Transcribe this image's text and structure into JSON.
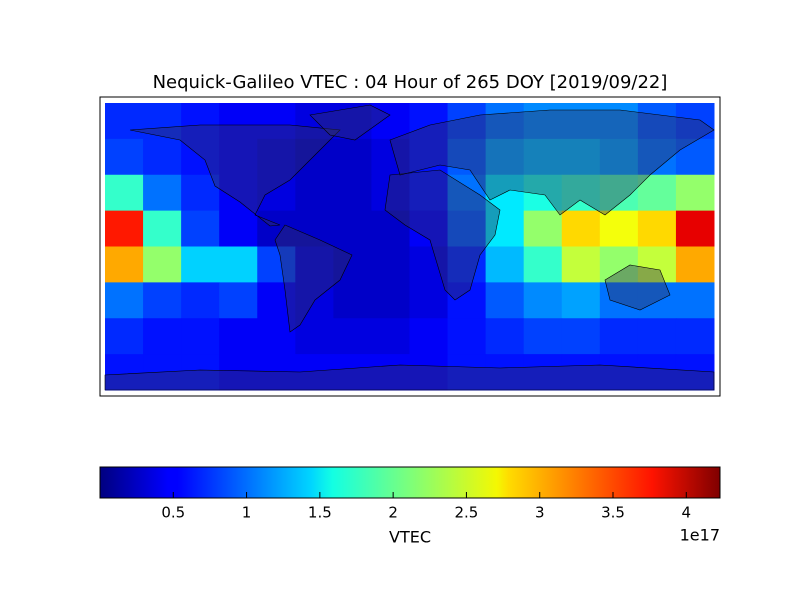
{
  "chart_data": {
    "type": "heatmap",
    "title": "Nequick-Galileo VTEC : 04 Hour of 265 DOY [2019/09/22]",
    "colorbar_label": "VTEC",
    "colorbar_offset": "1e17",
    "colormap": "jet",
    "clim": [
      0.0,
      4.23
    ],
    "cticks": [
      0.5,
      1.0,
      1.5,
      2.0,
      2.5,
      3.0,
      3.5,
      4.0
    ],
    "values": [
      [
        0.7,
        0.7,
        0.6,
        0.5,
        0.5,
        0.4,
        0.4,
        0.5,
        0.6,
        0.8,
        1.0,
        1.1,
        1.1,
        1.1,
        0.9,
        0.8
      ],
      [
        0.8,
        0.7,
        0.6,
        0.5,
        0.4,
        0.3,
        0.3,
        0.4,
        0.6,
        0.9,
        1.2,
        1.3,
        1.3,
        1.2,
        1.0,
        0.9
      ],
      [
        1.8,
        1.0,
        0.7,
        0.5,
        0.4,
        0.3,
        0.3,
        0.4,
        0.6,
        1.0,
        1.5,
        1.7,
        1.8,
        1.9,
        2.0,
        2.2
      ],
      [
        3.6,
        1.8,
        0.8,
        0.5,
        0.3,
        0.3,
        0.3,
        0.3,
        0.5,
        0.9,
        1.5,
        2.2,
        2.8,
        2.6,
        2.8,
        3.8
      ],
      [
        3.0,
        2.2,
        1.4,
        1.4,
        0.8,
        0.4,
        0.3,
        0.3,
        0.4,
        0.7,
        1.3,
        1.8,
        2.4,
        2.2,
        2.4,
        3.0
      ],
      [
        1.0,
        0.8,
        0.7,
        0.8,
        0.5,
        0.4,
        0.3,
        0.3,
        0.4,
        0.6,
        0.9,
        1.1,
        1.2,
        1.0,
        1.0,
        1.0
      ],
      [
        0.7,
        0.6,
        0.6,
        0.5,
        0.5,
        0.4,
        0.4,
        0.4,
        0.5,
        0.6,
        0.7,
        0.8,
        0.8,
        0.7,
        0.7,
        0.7
      ],
      [
        0.6,
        0.6,
        0.6,
        0.5,
        0.5,
        0.5,
        0.5,
        0.5,
        0.5,
        0.6,
        0.6,
        0.6,
        0.6,
        0.6,
        0.6,
        0.6
      ]
    ]
  }
}
